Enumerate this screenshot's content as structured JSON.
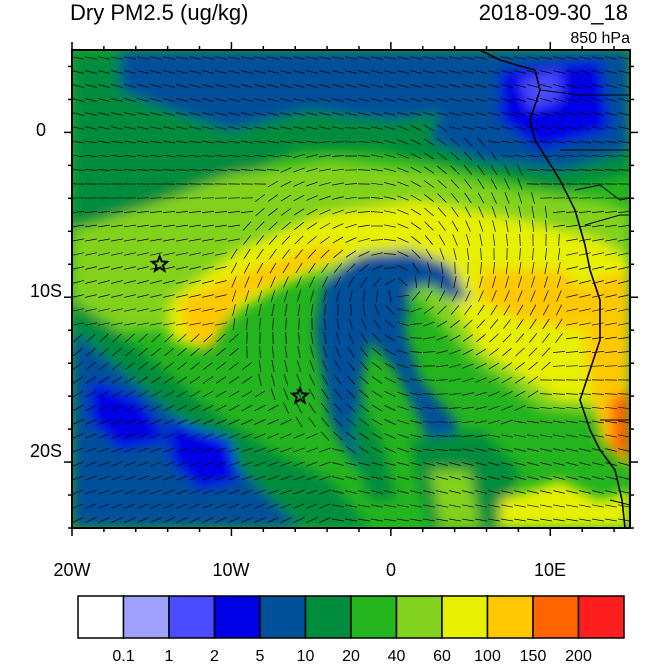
{
  "header": {
    "title": "Dry PM2.5 (ug/kg)",
    "datetime": "2018-09-30_18",
    "level": "850 hPa"
  },
  "map": {
    "lon_labels": [
      "20W",
      "10W",
      "0",
      "10E"
    ],
    "lat_labels": [
      "0",
      "10S",
      "20S"
    ],
    "extent": {
      "lon": [
        -20,
        15
      ],
      "lat": [
        -24,
        5
      ]
    },
    "markers": [
      {
        "type": "star",
        "lon": -14.5,
        "lat": -8.0
      },
      {
        "type": "star",
        "lon": -5.7,
        "lat": -16.0
      }
    ]
  },
  "colorbar": {
    "labels": [
      "0.1",
      "1",
      "2",
      "5",
      "10",
      "20",
      "40",
      "60",
      "100",
      "150",
      "200"
    ],
    "colors": [
      "#ffffff",
      "#a0a0ff",
      "#4b4bff",
      "#0000e6",
      "#00509a",
      "#008c3c",
      "#24b41e",
      "#82d21e",
      "#e6f000",
      "#ffc800",
      "#ff6400",
      "#ff1e1e"
    ]
  }
}
